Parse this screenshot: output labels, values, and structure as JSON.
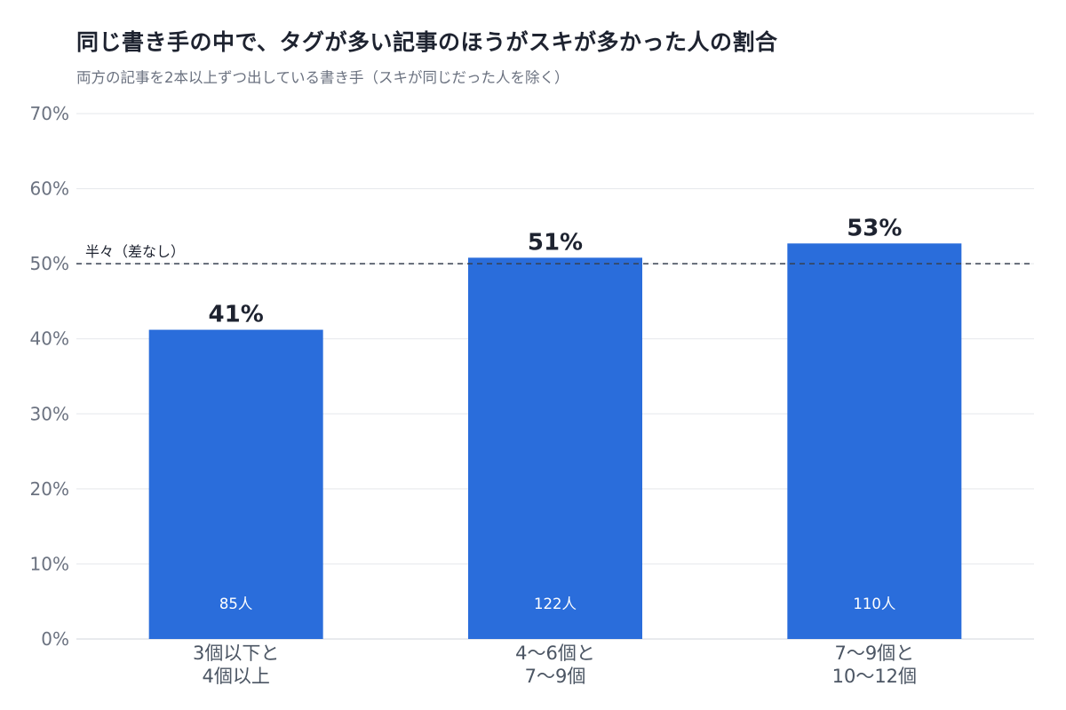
{
  "title": "同じ書き手の中で、タグが多い記事のほうがスキが多かった人の割合",
  "subtitle": "両方の記事を2本以上ずつ出している書き手（スキが同じだった人を除く）",
  "chart_data": {
    "type": "bar",
    "categories": [
      [
        "3個以下と",
        "4個以上"
      ],
      [
        "4〜6個と",
        "7〜9個"
      ],
      [
        "7〜9個と",
        "10〜12個"
      ]
    ],
    "values": [
      41.2,
      50.8,
      52.7
    ],
    "value_labels": [
      "41%",
      "51%",
      "53%"
    ],
    "count_labels": [
      "85人",
      "122人",
      "110人"
    ],
    "ylim": [
      0,
      70
    ],
    "yticks": [
      0,
      10,
      20,
      30,
      40,
      50,
      60,
      70
    ],
    "ytick_labels": [
      "0%",
      "10%",
      "20%",
      "30%",
      "40%",
      "50%",
      "60%",
      "70%"
    ],
    "reference_line": {
      "value": 50,
      "label": "半々（差なし）"
    },
    "grid": true,
    "bar_color": "#2a6ddb"
  }
}
